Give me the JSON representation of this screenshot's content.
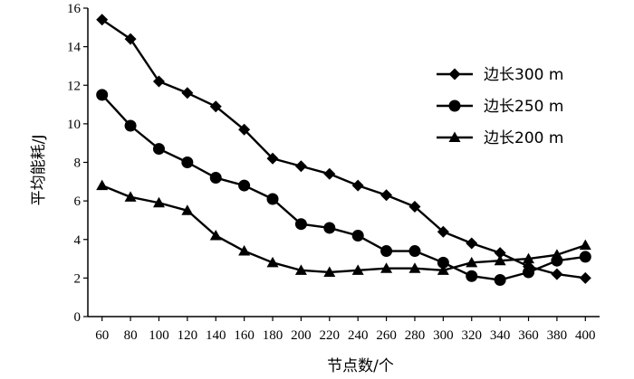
{
  "chart_data": {
    "type": "line",
    "title": "",
    "xlabel": "节点数/个",
    "ylabel": "平均能耗/J",
    "x": [
      60,
      80,
      100,
      120,
      140,
      160,
      180,
      200,
      220,
      240,
      260,
      280,
      300,
      320,
      340,
      360,
      380,
      400
    ],
    "xlim": [
      50,
      410
    ],
    "ylim": [
      0,
      16
    ],
    "yticks": [
      0,
      2,
      4,
      6,
      8,
      10,
      12,
      14,
      16
    ],
    "grid": false,
    "legend_position": "right",
    "series": [
      {
        "name": "边长300 m",
        "marker": "diamond",
        "values": [
          15.4,
          14.4,
          12.2,
          11.6,
          10.9,
          9.7,
          8.2,
          7.8,
          7.4,
          6.8,
          6.3,
          5.7,
          4.4,
          3.8,
          3.3,
          2.6,
          2.2,
          2.0
        ]
      },
      {
        "name": "边长250 m",
        "marker": "circle",
        "values": [
          11.5,
          9.9,
          8.7,
          8.0,
          7.2,
          6.8,
          6.1,
          4.8,
          4.6,
          4.2,
          3.4,
          3.4,
          2.8,
          2.1,
          1.9,
          2.3,
          2.9,
          3.1
        ]
      },
      {
        "name": "边长200 m",
        "marker": "triangle",
        "values": [
          6.8,
          6.2,
          5.9,
          5.5,
          4.2,
          3.4,
          2.8,
          2.4,
          2.3,
          2.4,
          2.5,
          2.5,
          2.4,
          2.8,
          2.9,
          3.0,
          3.2,
          3.7
        ]
      }
    ]
  }
}
